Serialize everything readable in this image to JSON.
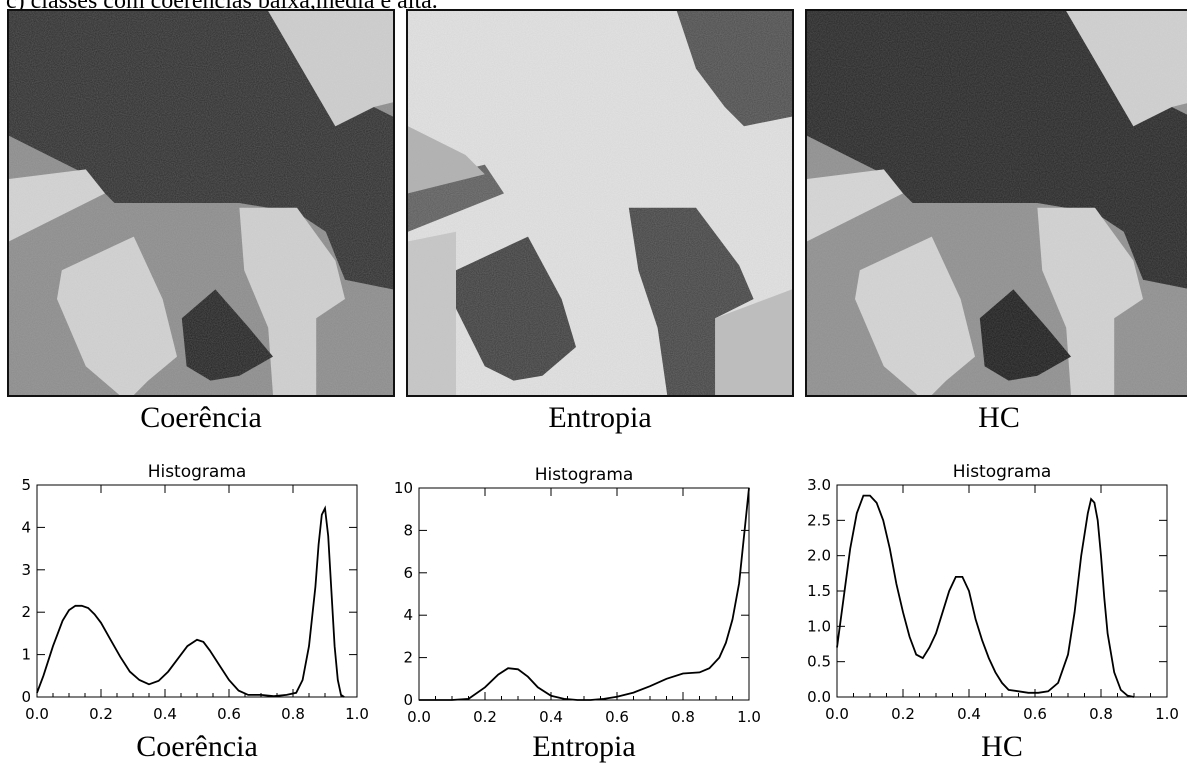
{
  "header": {
    "text": "c) classes com coerências baixa,média e alta."
  },
  "images": [
    {
      "caption": "Coerência"
    },
    {
      "caption": "Entropia"
    },
    {
      "caption": "HC"
    }
  ],
  "chart_data": [
    {
      "type": "line",
      "title": "Histograma",
      "xlabel": "",
      "ylabel": "",
      "caption": "Coerência",
      "xlim": [
        0.0,
        1.0
      ],
      "ylim": [
        0,
        5
      ],
      "xticks": [
        "0.0",
        "0.2",
        "0.4",
        "0.6",
        "0.8",
        "1.0"
      ],
      "yticks": [
        "0",
        "1",
        "2",
        "3",
        "4",
        "5"
      ],
      "series": [
        {
          "x": [
            0.0,
            0.02,
            0.05,
            0.08,
            0.1,
            0.12,
            0.14,
            0.16,
            0.18,
            0.2,
            0.23,
            0.26,
            0.29,
            0.32,
            0.35,
            0.38,
            0.41,
            0.44,
            0.47,
            0.5,
            0.52,
            0.54,
            0.57,
            0.6,
            0.63,
            0.66,
            0.7,
            0.74,
            0.78,
            0.81,
            0.83,
            0.85,
            0.87,
            0.88,
            0.89,
            0.9,
            0.91,
            0.92,
            0.93,
            0.94,
            0.95,
            0.96
          ],
          "y": [
            0.1,
            0.5,
            1.2,
            1.8,
            2.05,
            2.15,
            2.15,
            2.1,
            1.95,
            1.75,
            1.35,
            0.95,
            0.6,
            0.4,
            0.3,
            0.38,
            0.6,
            0.9,
            1.2,
            1.35,
            1.3,
            1.1,
            0.75,
            0.4,
            0.15,
            0.05,
            0.05,
            0.02,
            0.05,
            0.1,
            0.4,
            1.2,
            2.6,
            3.6,
            4.3,
            4.45,
            3.8,
            2.5,
            1.2,
            0.4,
            0.05,
            0.0
          ]
        }
      ]
    },
    {
      "type": "line",
      "title": "Histograma",
      "xlabel": "",
      "ylabel": "",
      "caption": "Entropia",
      "xlim": [
        0.0,
        1.0
      ],
      "ylim": [
        0,
        10
      ],
      "xticks": [
        "0.0",
        "0.2",
        "0.4",
        "0.6",
        "0.8",
        "1.0"
      ],
      "yticks": [
        "0",
        "2",
        "4",
        "6",
        "8",
        "10"
      ],
      "series": [
        {
          "x": [
            0.0,
            0.1,
            0.15,
            0.2,
            0.24,
            0.27,
            0.3,
            0.33,
            0.36,
            0.4,
            0.44,
            0.48,
            0.52,
            0.56,
            0.6,
            0.65,
            0.7,
            0.75,
            0.8,
            0.85,
            0.88,
            0.91,
            0.93,
            0.95,
            0.97,
            0.98,
            0.99,
            1.0
          ],
          "y": [
            0.0,
            0.0,
            0.05,
            0.6,
            1.2,
            1.5,
            1.45,
            1.1,
            0.6,
            0.2,
            0.05,
            0.0,
            0.0,
            0.05,
            0.15,
            0.35,
            0.65,
            1.0,
            1.25,
            1.3,
            1.5,
            2.0,
            2.7,
            3.8,
            5.5,
            7.0,
            8.5,
            10.0
          ]
        }
      ]
    },
    {
      "type": "line",
      "title": "Histograma",
      "xlabel": "",
      "ylabel": "",
      "caption": "HC",
      "xlim": [
        0.0,
        1.0
      ],
      "ylim": [
        0.0,
        3.0
      ],
      "xticks": [
        "0.0",
        "0.2",
        "0.4",
        "0.6",
        "0.8",
        "1.0"
      ],
      "yticks": [
        "0.0",
        "0.5",
        "1.0",
        "1.5",
        "2.0",
        "2.5",
        "3.0"
      ],
      "series": [
        {
          "x": [
            0.0,
            0.02,
            0.04,
            0.06,
            0.08,
            0.1,
            0.12,
            0.14,
            0.16,
            0.18,
            0.2,
            0.22,
            0.24,
            0.26,
            0.28,
            0.3,
            0.32,
            0.34,
            0.36,
            0.38,
            0.4,
            0.42,
            0.44,
            0.46,
            0.48,
            0.5,
            0.52,
            0.55,
            0.58,
            0.61,
            0.64,
            0.67,
            0.7,
            0.72,
            0.74,
            0.76,
            0.77,
            0.78,
            0.79,
            0.8,
            0.81,
            0.82,
            0.84,
            0.86,
            0.88,
            0.9
          ],
          "y": [
            0.7,
            1.4,
            2.1,
            2.6,
            2.85,
            2.85,
            2.75,
            2.5,
            2.1,
            1.6,
            1.2,
            0.85,
            0.6,
            0.55,
            0.7,
            0.9,
            1.2,
            1.5,
            1.7,
            1.7,
            1.5,
            1.1,
            0.8,
            0.55,
            0.35,
            0.2,
            0.1,
            0.08,
            0.06,
            0.06,
            0.08,
            0.2,
            0.6,
            1.2,
            2.0,
            2.6,
            2.8,
            2.75,
            2.5,
            2.0,
            1.4,
            0.9,
            0.35,
            0.1,
            0.02,
            0.0
          ]
        }
      ]
    }
  ]
}
